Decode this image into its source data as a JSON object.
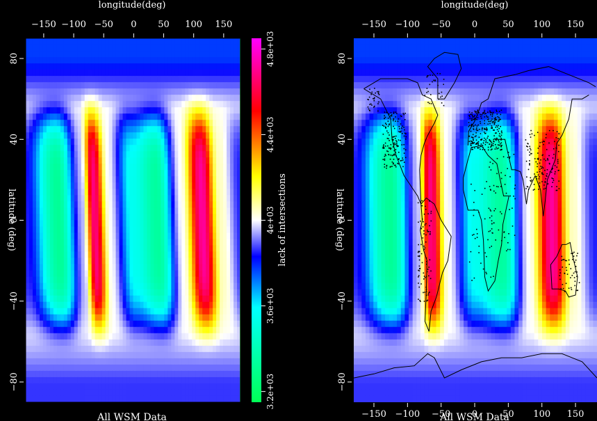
{
  "chart_data": [
    {
      "type": "heatmap",
      "panel": "left",
      "title": "",
      "subtitle": "All WSM Data",
      "xlabel": "longitude(deg)",
      "ylabel": "latitude (deg)",
      "xlim": [
        -180,
        180
      ],
      "ylim": [
        -90,
        90
      ],
      "xticks": [
        -150,
        -100,
        -50,
        0,
        50,
        100,
        150
      ],
      "yticks": [
        80,
        40,
        0,
        -40,
        -80
      ],
      "xtick_labels": [
        "−150",
        "−100",
        "−50",
        "0",
        "50",
        "100",
        "150"
      ],
      "ytick_labels": [
        "80",
        "40",
        "0",
        "−40",
        "−80"
      ],
      "field": {
        "description_lon_structure": [
          {
            "lon": -180,
            "value": 3850
          },
          {
            "lon": -125,
            "value": 3320
          },
          {
            "lon": -85,
            "value": 3950
          },
          {
            "lon": -65,
            "value": 4680
          },
          {
            "lon": -40,
            "value": 4000
          },
          {
            "lon": 0,
            "value": 3550
          },
          {
            "lon": 40,
            "value": 3340
          },
          {
            "lon": 80,
            "value": 4000
          },
          {
            "lon": 115,
            "value": 4720
          },
          {
            "lon": 145,
            "value": 4050
          },
          {
            "lon": 180,
            "value": 3850
          }
        ]
      }
    },
    {
      "type": "heatmap",
      "panel": "right",
      "title": "",
      "subtitle": "All WSM Data",
      "xlabel": "longitude(deg)",
      "ylabel": "latitude (deg)",
      "xlim": [
        -180,
        180
      ],
      "ylim": [
        -90,
        90
      ],
      "xticks": [
        -150,
        -100,
        -50,
        0,
        50,
        100,
        150
      ],
      "yticks": [
        80,
        40,
        0,
        -40,
        -80
      ],
      "xtick_labels": [
        "−150",
        "−100",
        "−50",
        "0",
        "50",
        "100",
        "150"
      ],
      "ytick_labels": [
        "80",
        "40",
        "0",
        "−40",
        "−80"
      ],
      "overlay": "coastlines and WSM data points"
    }
  ],
  "colorbar": {
    "label": "lack of intersections",
    "ticks": [
      3200,
      3600,
      4000,
      4400,
      4800
    ],
    "tick_labels": [
      "3.2e+03",
      "3.6e+03",
      "4e+03",
      "4.4e+03",
      "4.8e+03"
    ],
    "range": [
      3150,
      4850
    ],
    "colors": [
      "#00ff55",
      "#00ffff",
      "#0000ff",
      "#ffffff",
      "#ffff00",
      "#ff0000",
      "#ff00ff"
    ]
  },
  "colors": {
    "background": "#000000",
    "text": "#ffffff",
    "coast": "#000000"
  }
}
